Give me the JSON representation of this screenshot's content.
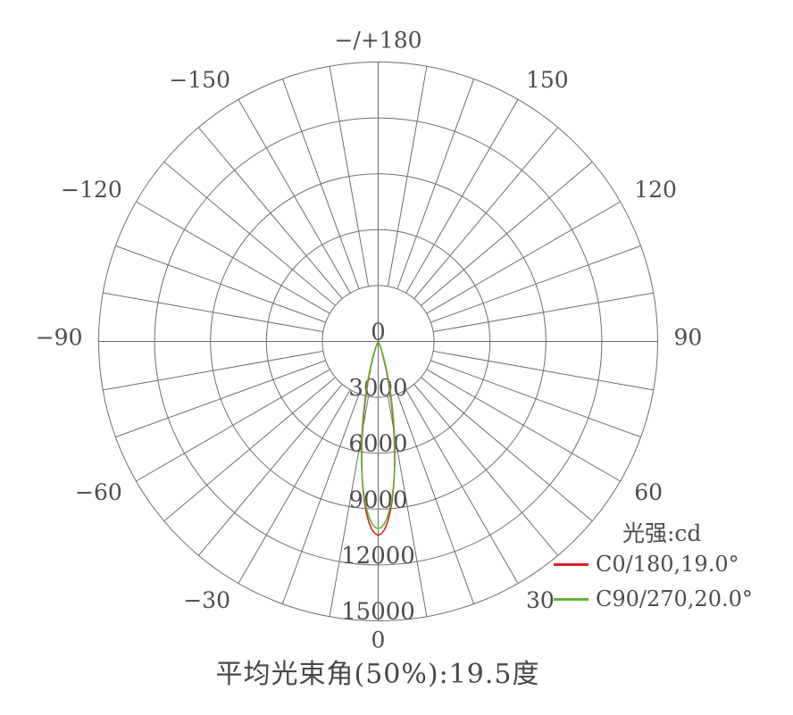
{
  "chart_data": {
    "type": "polar_line",
    "title": "平均光束角(50%):19.5度",
    "units_label": "光强:cd",
    "r_max": 15000,
    "radial_ticks": [
      0,
      3000,
      6000,
      9000,
      12000,
      15000
    ],
    "spoke_step_deg": 10,
    "grid_color": "#6e6e6e",
    "text_color": "#4d4d4d",
    "angle_labels": [
      {
        "angle": 180,
        "label": "−/+180"
      },
      {
        "angle": -150,
        "label": "−150"
      },
      {
        "angle": 150,
        "label": "150"
      },
      {
        "angle": -120,
        "label": "−120"
      },
      {
        "angle": 120,
        "label": "120"
      },
      {
        "angle": -90,
        "label": "−90"
      },
      {
        "angle": 90,
        "label": "90"
      },
      {
        "angle": -60,
        "label": "−60"
      },
      {
        "angle": 60,
        "label": "60"
      },
      {
        "angle": -30,
        "label": "−30"
      },
      {
        "angle": 30,
        "label": "30"
      },
      {
        "angle": 0,
        "label": "0"
      }
    ],
    "series": [
      {
        "name": "C0/180,19.0°",
        "color": "#e11f26",
        "beam_angle_deg": 19.0,
        "peak_cd": 10400,
        "symmetric": true,
        "points": [
          [
            0,
            10400
          ],
          [
            1,
            10320
          ],
          [
            2,
            10085
          ],
          [
            3,
            9705
          ],
          [
            4,
            9197
          ],
          [
            5,
            8583
          ],
          [
            6,
            7888
          ],
          [
            7,
            7138
          ],
          [
            8,
            6361
          ],
          [
            9,
            5583
          ],
          [
            10,
            4825
          ],
          [
            11,
            4106
          ],
          [
            12,
            3441
          ],
          [
            13,
            2840
          ],
          [
            14,
            2308
          ],
          [
            15,
            1847
          ],
          [
            16,
            1456
          ],
          [
            17,
            1130
          ],
          [
            18,
            864
          ],
          [
            19,
            650
          ],
          [
            20,
            482
          ],
          [
            21,
            352
          ],
          [
            22,
            253
          ],
          [
            23,
            179
          ],
          [
            24,
            125
          ],
          [
            25,
            86
          ],
          [
            26,
            58
          ],
          [
            27,
            38
          ],
          [
            28,
            25
          ],
          [
            29,
            16
          ],
          [
            30,
            10
          ]
        ]
      },
      {
        "name": "C90/270,20.0°",
        "color": "#5fb636",
        "beam_angle_deg": 20.0,
        "peak_cd": 10050,
        "symmetric": true,
        "points": [
          [
            0,
            10050
          ],
          [
            1,
            9981
          ],
          [
            2,
            9775
          ],
          [
            3,
            9442
          ],
          [
            4,
            8995
          ],
          [
            5,
            8451
          ],
          [
            6,
            7831
          ],
          [
            7,
            7156
          ],
          [
            8,
            6449
          ],
          [
            9,
            5732
          ],
          [
            10,
            5025
          ],
          [
            11,
            4345
          ],
          [
            12,
            3704
          ],
          [
            13,
            3115
          ],
          [
            14,
            2583
          ],
          [
            15,
            2113
          ],
          [
            16,
            1704
          ],
          [
            17,
            1356
          ],
          [
            18,
            1064
          ],
          [
            19,
            823
          ],
          [
            20,
            628
          ],
          [
            21,
            473
          ],
          [
            22,
            351
          ],
          [
            23,
            257
          ],
          [
            24,
            185
          ],
          [
            25,
            132
          ],
          [
            26,
            93
          ],
          [
            27,
            64
          ],
          [
            28,
            44
          ],
          [
            29,
            30
          ],
          [
            30,
            20
          ]
        ]
      }
    ]
  }
}
